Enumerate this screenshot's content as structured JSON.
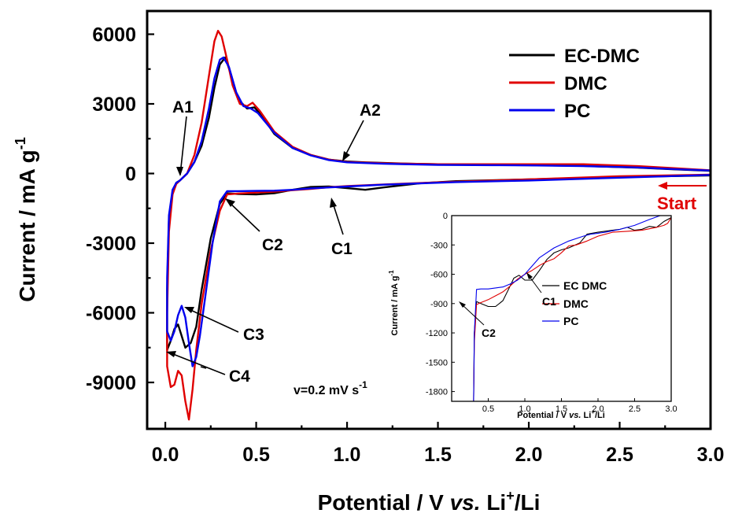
{
  "chart_data": [
    {
      "type": "line",
      "xlabel_parts": [
        "Potential / V ",
        "vs.",
        " Li",
        "+",
        "/Li"
      ],
      "ylabel_parts": [
        "Current / mA g",
        "-1"
      ],
      "xlim": [
        -0.1,
        3.0
      ],
      "ylim": [
        -11000,
        7000
      ],
      "x_ticks": [
        "0.0",
        "0.5",
        "1.0",
        "1.5",
        "2.0",
        "2.5",
        "3.0"
      ],
      "y_ticks": [
        "6000",
        "3000",
        "0",
        "-3000",
        "-6000",
        "-9000"
      ],
      "x_tick_values": [
        0.0,
        0.5,
        1.0,
        1.5,
        2.0,
        2.5,
        3.0
      ],
      "y_tick_values": [
        6000,
        3000,
        0,
        -3000,
        -6000,
        -9000
      ],
      "legend_position": "top-right",
      "series": [
        {
          "name": "EC-DMC",
          "color": "#000000",
          "points": [
            [
              3.0,
              -80
            ],
            [
              2.5,
              -150
            ],
            [
              2.0,
              -250
            ],
            [
              1.6,
              -330
            ],
            [
              1.4,
              -420
            ],
            [
              1.2,
              -600
            ],
            [
              1.1,
              -700
            ],
            [
              1.0,
              -630
            ],
            [
              0.9,
              -560
            ],
            [
              0.8,
              -580
            ],
            [
              0.7,
              -700
            ],
            [
              0.6,
              -850
            ],
            [
              0.5,
              -900
            ],
            [
              0.4,
              -880
            ],
            [
              0.34,
              -850
            ],
            [
              0.3,
              -1300
            ],
            [
              0.25,
              -2800
            ],
            [
              0.2,
              -5000
            ],
            [
              0.17,
              -6600
            ],
            [
              0.14,
              -7300
            ],
            [
              0.11,
              -7500
            ],
            [
              0.09,
              -7000
            ],
            [
              0.07,
              -6500
            ],
            [
              0.05,
              -6700
            ],
            [
              0.03,
              -7200
            ],
            [
              0.01,
              -7600
            ],
            [
              0.01,
              -5000
            ],
            [
              0.02,
              -2000
            ],
            [
              0.04,
              -800
            ],
            [
              0.06,
              -400
            ],
            [
              0.08,
              -300
            ],
            [
              0.12,
              0
            ],
            [
              0.16,
              500
            ],
            [
              0.2,
              1200
            ],
            [
              0.24,
              2400
            ],
            [
              0.27,
              3700
            ],
            [
              0.3,
              4700
            ],
            [
              0.33,
              5000
            ],
            [
              0.36,
              4300
            ],
            [
              0.4,
              3200
            ],
            [
              0.45,
              2800
            ],
            [
              0.49,
              2850
            ],
            [
              0.53,
              2500
            ],
            [
              0.6,
              1700
            ],
            [
              0.7,
              1100
            ],
            [
              0.8,
              800
            ],
            [
              0.9,
              600
            ],
            [
              1.0,
              520
            ],
            [
              1.1,
              480
            ],
            [
              1.3,
              430
            ],
            [
              1.5,
              400
            ],
            [
              1.8,
              370
            ],
            [
              2.0,
              360
            ],
            [
              2.3,
              330
            ],
            [
              2.6,
              250
            ],
            [
              2.8,
              180
            ],
            [
              3.0,
              120
            ]
          ]
        },
        {
          "name": "DMC",
          "color": "#e00000",
          "points": [
            [
              3.0,
              -50
            ],
            [
              2.5,
              -120
            ],
            [
              2.0,
              -250
            ],
            [
              1.5,
              -380
            ],
            [
              1.2,
              -470
            ],
            [
              1.0,
              -540
            ],
            [
              0.9,
              -590
            ],
            [
              0.8,
              -660
            ],
            [
              0.7,
              -720
            ],
            [
              0.6,
              -780
            ],
            [
              0.5,
              -820
            ],
            [
              0.4,
              -860
            ],
            [
              0.34,
              -900
            ],
            [
              0.3,
              -1600
            ],
            [
              0.25,
              -3300
            ],
            [
              0.2,
              -5600
            ],
            [
              0.17,
              -7600
            ],
            [
              0.15,
              -9300
            ],
            [
              0.13,
              -10600
            ],
            [
              0.11,
              -9800
            ],
            [
              0.09,
              -8700
            ],
            [
              0.07,
              -8500
            ],
            [
              0.05,
              -9100
            ],
            [
              0.03,
              -9200
            ],
            [
              0.01,
              -8300
            ],
            [
              0.01,
              -6000
            ],
            [
              0.02,
              -2500
            ],
            [
              0.04,
              -900
            ],
            [
              0.06,
              -450
            ],
            [
              0.08,
              -300
            ],
            [
              0.12,
              0
            ],
            [
              0.16,
              800
            ],
            [
              0.2,
              2200
            ],
            [
              0.24,
              4200
            ],
            [
              0.27,
              5700
            ],
            [
              0.29,
              6150
            ],
            [
              0.31,
              5900
            ],
            [
              0.34,
              4900
            ],
            [
              0.37,
              3800
            ],
            [
              0.41,
              3000
            ],
            [
              0.45,
              2900
            ],
            [
              0.48,
              3050
            ],
            [
              0.52,
              2700
            ],
            [
              0.6,
              1800
            ],
            [
              0.7,
              1150
            ],
            [
              0.8,
              800
            ],
            [
              0.9,
              600
            ],
            [
              1.0,
              500
            ],
            [
              1.2,
              440
            ],
            [
              1.5,
              400
            ],
            [
              1.8,
              400
            ],
            [
              2.0,
              400
            ],
            [
              2.3,
              400
            ],
            [
              2.6,
              320
            ],
            [
              2.8,
              230
            ],
            [
              3.0,
              140
            ]
          ]
        },
        {
          "name": "PC",
          "color": "#0000ee",
          "points": [
            [
              3.0,
              -60
            ],
            [
              2.5,
              -180
            ],
            [
              2.0,
              -300
            ],
            [
              1.6,
              -370
            ],
            [
              1.2,
              -480
            ],
            [
              1.0,
              -560
            ],
            [
              0.9,
              -600
            ],
            [
              0.8,
              -640
            ],
            [
              0.7,
              -700
            ],
            [
              0.6,
              -740
            ],
            [
              0.5,
              -750
            ],
            [
              0.4,
              -760
            ],
            [
              0.34,
              -760
            ],
            [
              0.3,
              -1200
            ],
            [
              0.26,
              -3000
            ],
            [
              0.22,
              -5300
            ],
            [
              0.19,
              -7000
            ],
            [
              0.17,
              -7900
            ],
            [
              0.15,
              -8300
            ],
            [
              0.13,
              -7300
            ],
            [
              0.11,
              -6200
            ],
            [
              0.09,
              -5700
            ],
            [
              0.07,
              -6100
            ],
            [
              0.05,
              -6800
            ],
            [
              0.03,
              -7200
            ],
            [
              0.01,
              -6800
            ],
            [
              0.01,
              -4500
            ],
            [
              0.02,
              -1800
            ],
            [
              0.04,
              -700
            ],
            [
              0.06,
              -400
            ],
            [
              0.08,
              -300
            ],
            [
              0.12,
              0
            ],
            [
              0.16,
              500
            ],
            [
              0.2,
              1400
            ],
            [
              0.24,
              2800
            ],
            [
              0.27,
              4100
            ],
            [
              0.3,
              4900
            ],
            [
              0.32,
              5000
            ],
            [
              0.35,
              4600
            ],
            [
              0.39,
              3500
            ],
            [
              0.43,
              2900
            ],
            [
              0.47,
              2800
            ],
            [
              0.51,
              2600
            ],
            [
              0.6,
              1750
            ],
            [
              0.7,
              1100
            ],
            [
              0.8,
              780
            ],
            [
              0.9,
              580
            ],
            [
              1.0,
              480
            ],
            [
              1.2,
              420
            ],
            [
              1.5,
              370
            ],
            [
              1.8,
              360
            ],
            [
              2.0,
              350
            ],
            [
              2.3,
              320
            ],
            [
              2.6,
              260
            ],
            [
              2.8,
              190
            ],
            [
              3.0,
              130
            ]
          ]
        }
      ],
      "annotations": {
        "A1": "A1",
        "A2": "A2",
        "C1": "C1",
        "C2": "C2",
        "C3": "C3",
        "C4": "C4",
        "start": "Start",
        "scan_rate_parts": [
          "v=0.2 mV s",
          "-1"
        ]
      },
      "start_color": "#e00000"
    },
    {
      "type": "line",
      "position": "inset",
      "xlabel_parts": [
        "Potential / V ",
        "vs.",
        " Li",
        "+",
        "/Li"
      ],
      "ylabel_parts": [
        "Current / mA g",
        "-1"
      ],
      "xlim": [
        0.0,
        3.0
      ],
      "ylim": [
        -1900,
        0
      ],
      "x_ticks": [
        "0.5",
        "1.0",
        "1.5",
        "2.0",
        "2.5",
        "3.0"
      ],
      "y_ticks": [
        "0",
        "-300",
        "-600",
        "-900",
        "-1200",
        "-1500",
        "-1800"
      ],
      "x_tick_values": [
        0.5,
        1.0,
        1.5,
        2.0,
        2.5,
        3.0
      ],
      "y_tick_values": [
        0,
        -300,
        -600,
        -900,
        -1200,
        -1500,
        -1800
      ],
      "legend_position": "right",
      "series": [
        {
          "name": "EC DMC",
          "color": "#000000",
          "points": [
            [
              3.0,
              -20
            ],
            [
              2.9,
              -60
            ],
            [
              2.8,
              -120
            ],
            [
              2.7,
              -110
            ],
            [
              2.6,
              -140
            ],
            [
              2.5,
              -150
            ],
            [
              2.4,
              -120
            ],
            [
              2.3,
              -140
            ],
            [
              2.2,
              -150
            ],
            [
              2.0,
              -170
            ],
            [
              1.85,
              -190
            ],
            [
              1.75,
              -280
            ],
            [
              1.6,
              -330
            ],
            [
              1.5,
              -350
            ],
            [
              1.4,
              -380
            ],
            [
              1.3,
              -450
            ],
            [
              1.2,
              -560
            ],
            [
              1.1,
              -660
            ],
            [
              1.0,
              -660
            ],
            [
              0.92,
              -610
            ],
            [
              0.85,
              -640
            ],
            [
              0.78,
              -750
            ],
            [
              0.7,
              -870
            ],
            [
              0.6,
              -930
            ],
            [
              0.5,
              -930
            ],
            [
              0.4,
              -900
            ],
            [
              0.34,
              -880
            ],
            [
              0.31,
              -1200
            ],
            [
              0.3,
              -1900
            ]
          ]
        },
        {
          "name": "DMC",
          "color": "#e00000",
          "points": [
            [
              3.0,
              -20
            ],
            [
              2.95,
              -80
            ],
            [
              2.9,
              -100
            ],
            [
              2.8,
              -120
            ],
            [
              2.6,
              -150
            ],
            [
              2.4,
              -160
            ],
            [
              2.2,
              -170
            ],
            [
              2.0,
              -210
            ],
            [
              1.85,
              -260
            ],
            [
              1.7,
              -300
            ],
            [
              1.6,
              -310
            ],
            [
              1.5,
              -380
            ],
            [
              1.4,
              -440
            ],
            [
              1.3,
              -470
            ],
            [
              1.2,
              -510
            ],
            [
              1.1,
              -560
            ],
            [
              1.0,
              -600
            ],
            [
              0.9,
              -650
            ],
            [
              0.8,
              -720
            ],
            [
              0.7,
              -780
            ],
            [
              0.6,
              -820
            ],
            [
              0.5,
              -860
            ],
            [
              0.4,
              -890
            ],
            [
              0.34,
              -910
            ],
            [
              0.31,
              -1300
            ],
            [
              0.3,
              -1900
            ]
          ]
        },
        {
          "name": "PC",
          "color": "#0000ee",
          "points": [
            [
              2.85,
              0
            ],
            [
              2.7,
              -40
            ],
            [
              2.5,
              -100
            ],
            [
              2.3,
              -140
            ],
            [
              2.1,
              -170
            ],
            [
              2.0,
              -180
            ],
            [
              1.9,
              -190
            ],
            [
              1.8,
              -210
            ],
            [
              1.6,
              -260
            ],
            [
              1.4,
              -330
            ],
            [
              1.2,
              -430
            ],
            [
              1.0,
              -600
            ],
            [
              0.9,
              -660
            ],
            [
              0.8,
              -700
            ],
            [
              0.7,
              -730
            ],
            [
              0.6,
              -740
            ],
            [
              0.5,
              -750
            ],
            [
              0.4,
              -750
            ],
            [
              0.34,
              -755
            ],
            [
              0.31,
              -1200
            ],
            [
              0.3,
              -1900
            ]
          ]
        }
      ],
      "annotations": {
        "C1": "C1",
        "C2": "C2"
      }
    }
  ]
}
